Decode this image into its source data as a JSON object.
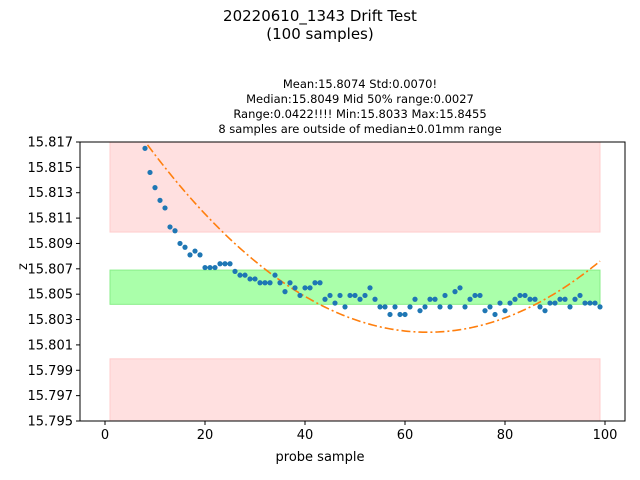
{
  "chart_data": {
    "type": "scatter",
    "title": "20220610_1343 Drift Test",
    "subtitle": "(100 samples)",
    "stats": [
      "Mean:15.8074  Std:0.0070!",
      "Median:15.8049  Mid 50% range:0.0027",
      "Range:0.0422!!!!  Min:15.8033  Max:15.8455",
      "8 samples are outside of median±0.01mm range"
    ],
    "xlabel": "probe sample",
    "ylabel": "z",
    "xlim": [
      -5,
      104
    ],
    "ylim": [
      15.795,
      15.817
    ],
    "x_ticks": [
      "0",
      "20",
      "40",
      "60",
      "80",
      "100"
    ],
    "y_ticks": [
      "15.795",
      "15.797",
      "15.799",
      "15.801",
      "15.803",
      "15.805",
      "15.807",
      "15.809",
      "15.811",
      "15.813",
      "15.815",
      "15.817"
    ],
    "bands": [
      {
        "kind": "outer",
        "x": [
          1,
          99
        ],
        "y": [
          15.8099,
          15.817
        ],
        "color": "#ffe0e0"
      },
      {
        "kind": "outer",
        "x": [
          1,
          99
        ],
        "y": [
          15.795,
          15.7999
        ],
        "color": "#ffe0e0"
      },
      {
        "kind": "inner",
        "x": [
          1,
          99
        ],
        "y": [
          15.8042,
          15.8069
        ],
        "color": "#aaffaa"
      }
    ],
    "fit_curve": {
      "style": "dash-dot",
      "color": "#ff7f0e",
      "vertex_x": 64.5,
      "vertex_y": 15.802,
      "a": 4.71e-06,
      "x_range": [
        1,
        99
      ]
    },
    "series": [
      {
        "color": "#1f77b4",
        "x": [
          8,
          9,
          10,
          11,
          12,
          13,
          14,
          15,
          16,
          17,
          18,
          19,
          20,
          21,
          22,
          23,
          24,
          25,
          26,
          27,
          28,
          29,
          30,
          31,
          32,
          33,
          34,
          35,
          36,
          37,
          38,
          39,
          40,
          41,
          42,
          43,
          44,
          45,
          46,
          47,
          48,
          49,
          50,
          51,
          52,
          53,
          54,
          55,
          56,
          57,
          58,
          59,
          60,
          61,
          62,
          63,
          64,
          65,
          66,
          67,
          68,
          69,
          70,
          71,
          72,
          73,
          74,
          75,
          76,
          77,
          78,
          79,
          80,
          81,
          82,
          83,
          84,
          85,
          86,
          87,
          88,
          89,
          90,
          91,
          92,
          93,
          94,
          95,
          96,
          97,
          98,
          99
        ],
        "y": [
          15.8165,
          15.8146,
          15.8134,
          15.8124,
          15.8118,
          15.8103,
          15.81,
          15.809,
          15.8087,
          15.8081,
          15.8084,
          15.8081,
          15.8071,
          15.8071,
          15.8071,
          15.8074,
          15.8074,
          15.8074,
          15.8068,
          15.8065,
          15.8065,
          15.8062,
          15.8062,
          15.8059,
          15.8059,
          15.8059,
          15.8065,
          15.8059,
          15.8052,
          15.8059,
          15.8055,
          15.8049,
          15.8055,
          15.8055,
          15.8059,
          15.8059,
          15.8046,
          15.8049,
          15.8043,
          15.8049,
          15.804,
          15.8049,
          15.8049,
          15.8046,
          15.8049,
          15.8055,
          15.8046,
          15.804,
          15.804,
          15.8034,
          15.804,
          15.8034,
          15.8034,
          15.804,
          15.8046,
          15.8037,
          15.804,
          15.8046,
          15.8046,
          15.804,
          15.8049,
          15.804,
          15.8052,
          15.8055,
          15.804,
          15.8046,
          15.8049,
          15.8049,
          15.8037,
          15.804,
          15.8034,
          15.8043,
          15.8037,
          15.8043,
          15.8046,
          15.8049,
          15.8049,
          15.8046,
          15.8046,
          15.804,
          15.8037,
          15.8043,
          15.8043,
          15.8046,
          15.8046,
          15.804,
          15.8046,
          15.8049,
          15.8043,
          15.8043,
          15.8043,
          15.804
        ]
      }
    ]
  }
}
